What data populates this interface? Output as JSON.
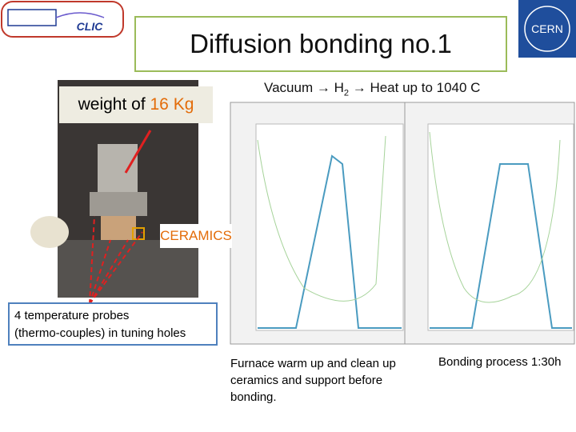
{
  "logos": {
    "left": "CLIC",
    "right": "CERN"
  },
  "header": {
    "title": "Diffusion bonding no.1"
  },
  "process": {
    "step1": "Vacuum",
    "step2_base": "H",
    "step2_sub": "2",
    "step3": "Heat up to 1040 C"
  },
  "photo": {
    "weight_label": "weight of ",
    "weight_value": "16 Kg",
    "ceramics": "CERAMICS",
    "probes_line1": "4 temperature probes",
    "probes_line2": "(thermo-couples) in tuning holes"
  },
  "captions": {
    "left": "Furnace warm up and clean up ceramics and support before bonding.",
    "right": "Bonding process 1:30h"
  }
}
